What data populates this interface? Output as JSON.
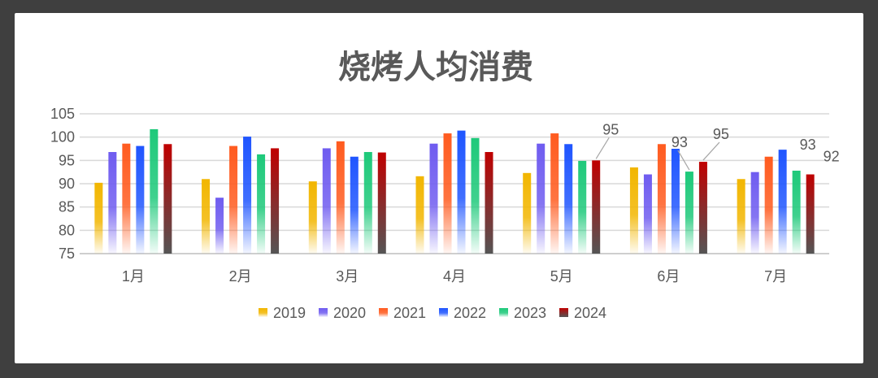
{
  "chart_data": {
    "type": "bar",
    "title": "烧烤人均消费",
    "categories": [
      "1月",
      "2月",
      "3月",
      "4月",
      "5月",
      "6月",
      "7月"
    ],
    "ylim": [
      75,
      105
    ],
    "yticks": [
      75,
      80,
      85,
      90,
      95,
      100,
      105
    ],
    "grid": true,
    "legend_position": "bottom",
    "series": [
      {
        "name": "2019",
        "color": "#f2b600",
        "values": [
          90.2,
          91.0,
          90.5,
          91.6,
          92.3,
          93.5,
          91.0
        ]
      },
      {
        "name": "2020",
        "color": "#6f5cf0",
        "values": [
          96.8,
          87.0,
          97.6,
          98.6,
          98.6,
          92.0,
          92.5
        ]
      },
      {
        "name": "2021",
        "color": "#ff5b1f",
        "values": [
          98.6,
          98.1,
          99.1,
          100.8,
          100.8,
          98.5,
          95.8
        ]
      },
      {
        "name": "2022",
        "color": "#1f55ff",
        "values": [
          98.1,
          100.1,
          95.8,
          101.4,
          98.5,
          97.5,
          97.3
        ]
      },
      {
        "name": "2023",
        "color": "#1ec97a",
        "values": [
          101.7,
          96.3,
          96.8,
          99.8,
          94.9,
          92.6,
          92.8
        ]
      },
      {
        "name": "2024",
        "color": "#c00000",
        "values": [
          98.5,
          97.6,
          96.7,
          96.8,
          95.0,
          94.7,
          92.0
        ]
      }
    ],
    "annotations": [
      {
        "text": "95",
        "category": "5月",
        "series": "2024"
      },
      {
        "text": "93",
        "category": "6月",
        "series": "2023"
      },
      {
        "text": "95",
        "category": "6月",
        "series": "2024"
      },
      {
        "text": "93",
        "category": "7月",
        "series": "2023"
      },
      {
        "text": "92",
        "category": "7月",
        "series": "2024"
      }
    ]
  }
}
